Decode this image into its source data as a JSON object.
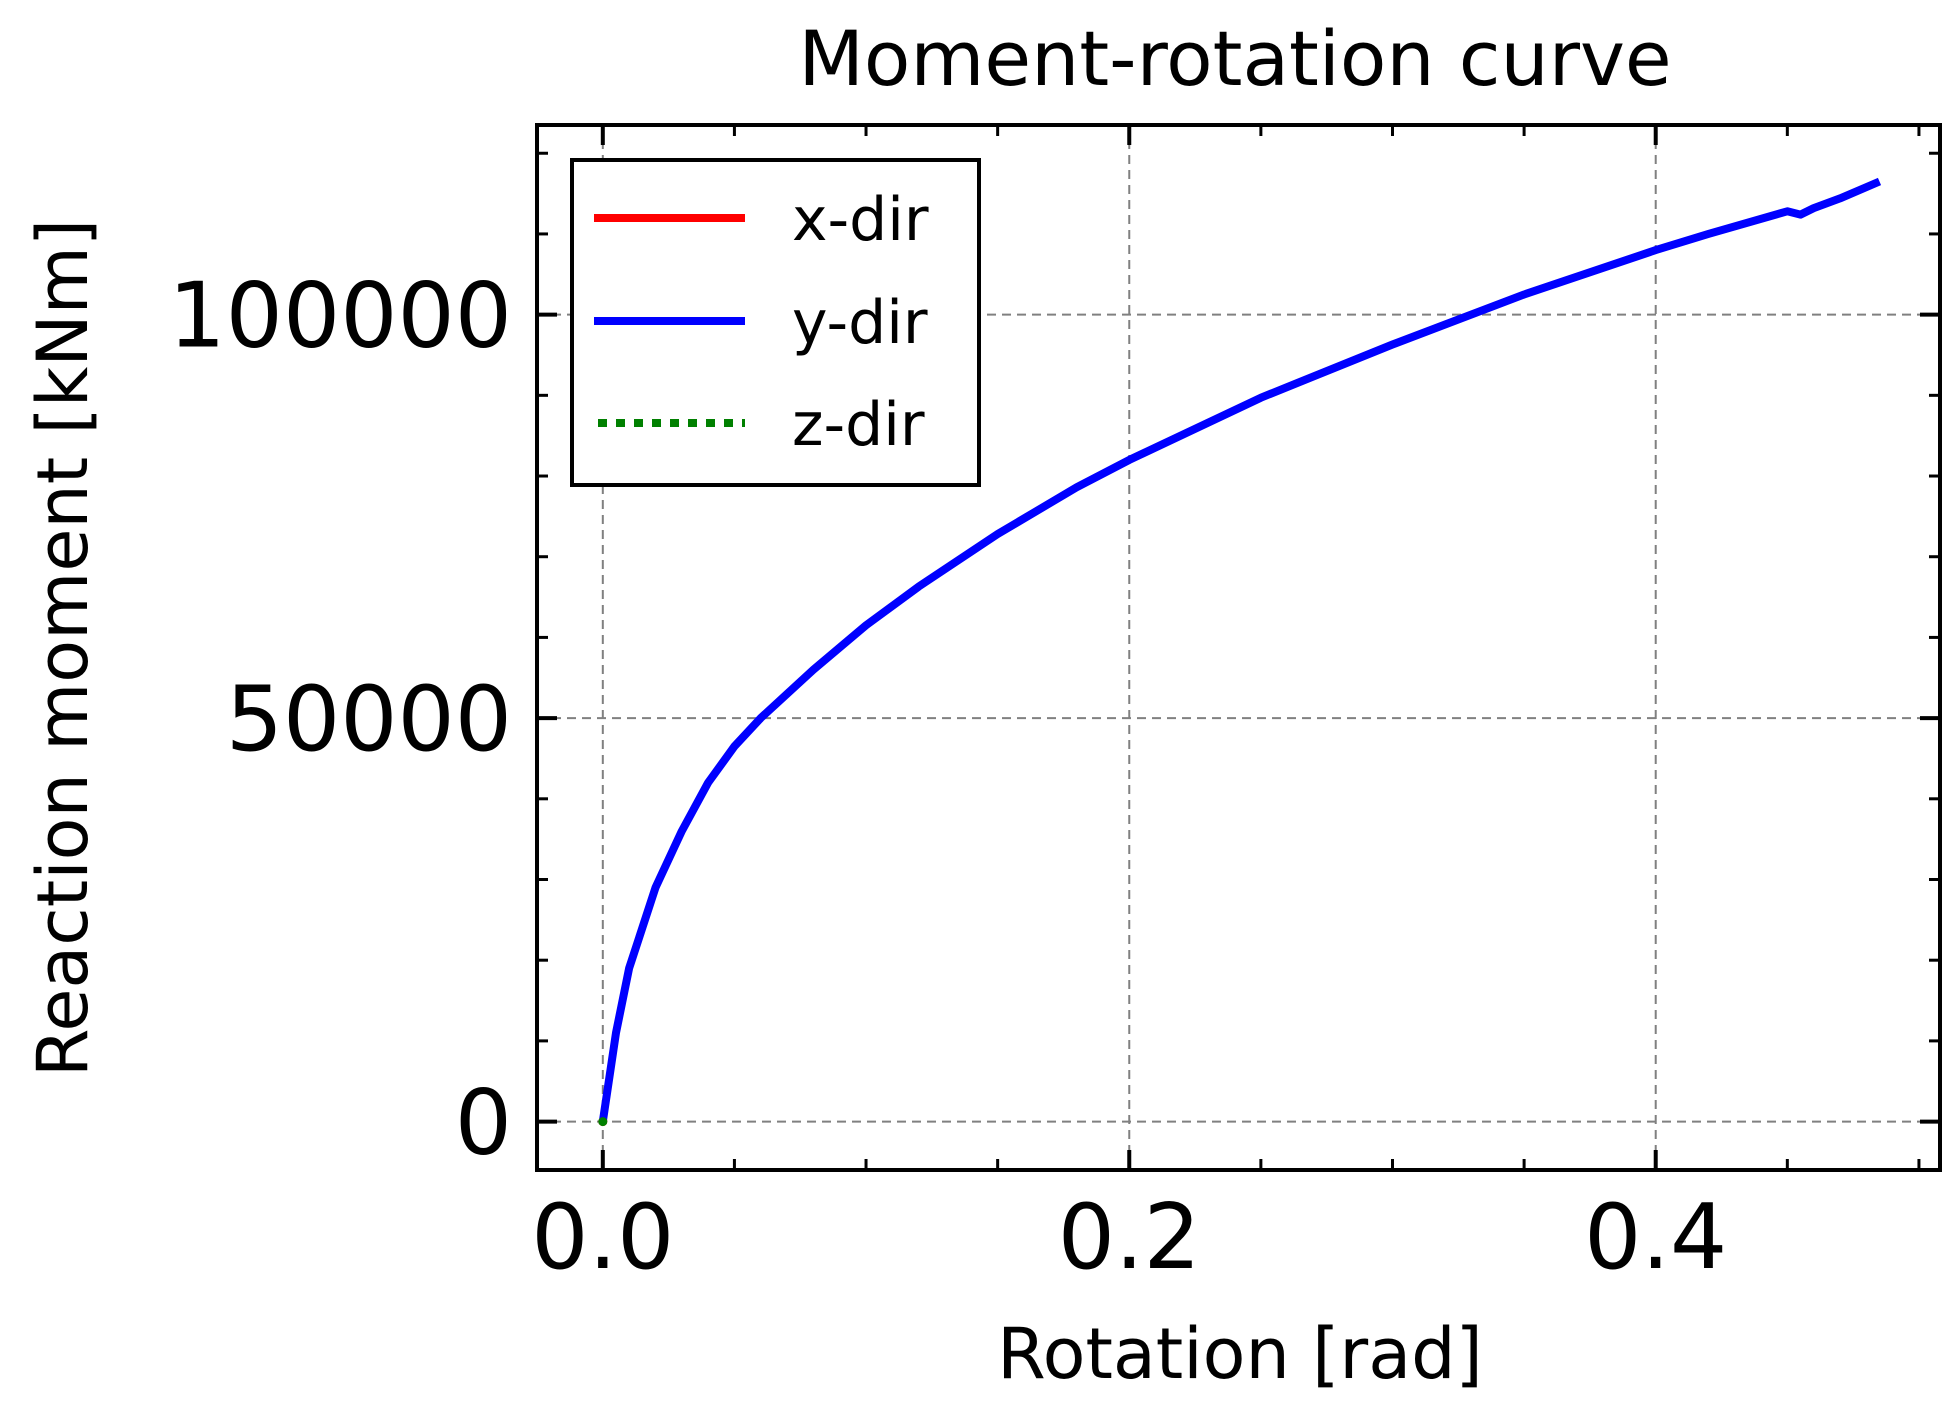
{
  "chart_data": {
    "type": "line",
    "title": "Moment-rotation curve",
    "xlabel": "Rotation [rad]",
    "ylabel": "Reaction moment [kNm]",
    "xlim": [
      -0.025,
      0.508
    ],
    "ylim": [
      -6000,
      123500
    ],
    "x_ticks": [
      0.0,
      0.2,
      0.4
    ],
    "x_tick_labels": [
      "0.0",
      "0.2",
      "0.4"
    ],
    "x_minor_step": 0.05,
    "y_ticks": [
      0,
      50000,
      100000
    ],
    "y_tick_labels": [
      "0",
      "50000",
      "100000"
    ],
    "y_minor_step": 10000,
    "grid": true,
    "legend_position": "top-left",
    "series": [
      {
        "name": "x-dir",
        "color": "#ff0000",
        "style": "solid",
        "x": [
          0.0
        ],
        "y": [
          0
        ]
      },
      {
        "name": "y-dir",
        "color": "#0000ff",
        "style": "solid",
        "x": [
          0.0,
          0.005,
          0.01,
          0.02,
          0.03,
          0.04,
          0.05,
          0.06,
          0.08,
          0.1,
          0.12,
          0.15,
          0.18,
          0.2,
          0.25,
          0.3,
          0.35,
          0.4,
          0.42,
          0.45,
          0.455,
          0.46,
          0.47,
          0.485
        ],
        "y": [
          0,
          11000,
          19000,
          29000,
          36000,
          42000,
          46500,
          50000,
          56000,
          61500,
          66300,
          72800,
          78600,
          82000,
          89700,
          96300,
          102500,
          108000,
          110000,
          112800,
          112400,
          113200,
          114400,
          116500
        ]
      },
      {
        "name": "z-dir",
        "color": "#008000",
        "style": "dotted",
        "x": [
          0.0
        ],
        "y": [
          0
        ]
      }
    ]
  }
}
